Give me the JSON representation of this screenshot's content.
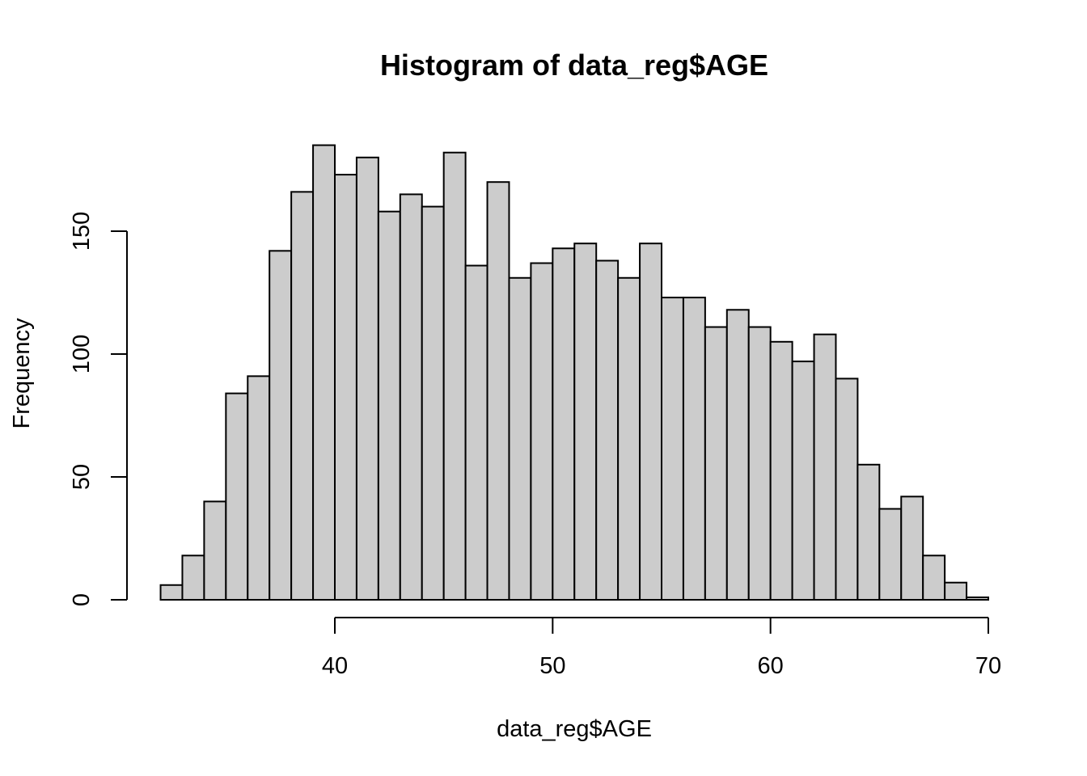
{
  "chart_data": {
    "type": "bar",
    "title": "Histogram of data_reg$AGE",
    "xlabel": "data_reg$AGE",
    "ylabel": "Frequency",
    "bin_width": 1,
    "bin_starts": [
      32,
      33,
      34,
      35,
      36,
      37,
      38,
      39,
      40,
      41,
      42,
      43,
      44,
      45,
      46,
      47,
      48,
      49,
      50,
      51,
      52,
      53,
      54,
      55,
      56,
      57,
      58,
      59,
      60,
      61,
      62,
      63,
      64,
      65,
      66,
      67,
      68,
      69
    ],
    "values": [
      6,
      18,
      40,
      84,
      91,
      142,
      166,
      185,
      173,
      180,
      158,
      165,
      160,
      182,
      136,
      170,
      131,
      137,
      143,
      145,
      138,
      131,
      145,
      123,
      123,
      111,
      118,
      111,
      105,
      97,
      108,
      90,
      55,
      37,
      42,
      18,
      7,
      1
    ],
    "x_ticks": [
      40,
      50,
      60,
      70
    ],
    "y_ticks": [
      0,
      50,
      100,
      150
    ],
    "xlim": [
      32,
      70
    ],
    "ylim": [
      0,
      185
    ],
    "grid": false,
    "colors": {
      "bar_fill": "#cccccc",
      "bar_stroke": "#000000"
    }
  }
}
